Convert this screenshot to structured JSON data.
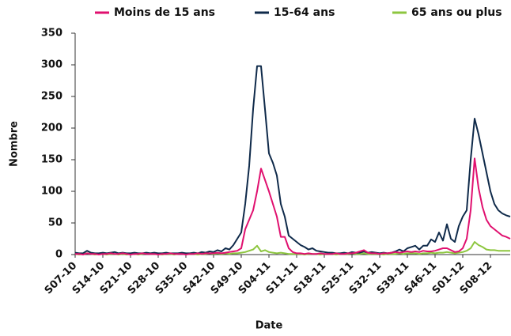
{
  "chart_data": {
    "type": "line",
    "x_label": "Date",
    "y_label": "Nombre",
    "legend": "top",
    "grid": false,
    "ylim": [
      0,
      350
    ],
    "yticks": [
      0,
      50,
      100,
      150,
      200,
      250,
      300,
      350
    ],
    "categories": [
      "S07-10",
      null,
      null,
      null,
      null,
      null,
      null,
      "S14-10",
      null,
      null,
      null,
      null,
      null,
      null,
      "S21-10",
      null,
      null,
      null,
      null,
      null,
      null,
      "S28-10",
      null,
      null,
      null,
      null,
      null,
      null,
      "S35-10",
      null,
      null,
      null,
      null,
      null,
      null,
      "S42-10",
      null,
      null,
      null,
      null,
      null,
      null,
      "S49-10",
      null,
      null,
      null,
      null,
      null,
      null,
      "S04-11",
      null,
      null,
      null,
      null,
      null,
      null,
      "S11-11",
      null,
      null,
      null,
      null,
      null,
      null,
      "S18-11",
      null,
      null,
      null,
      null,
      null,
      null,
      "S25-11",
      null,
      null,
      null,
      null,
      null,
      null,
      "S32-11",
      null,
      null,
      null,
      null,
      null,
      null,
      "S39-11",
      null,
      null,
      null,
      null,
      null,
      null,
      "S46-11",
      null,
      null,
      null,
      null,
      null,
      null,
      "S01-12",
      null,
      null,
      null,
      null,
      null,
      null,
      "S08-12",
      null,
      null,
      null,
      null,
      null
    ],
    "series": [
      {
        "name": "Moins de 15 ans",
        "color": "#e0106f",
        "values": [
          1,
          1,
          0,
          2,
          1,
          1,
          0,
          1,
          1,
          2,
          1,
          1,
          2,
          1,
          0,
          1,
          1,
          2,
          1,
          1,
          1,
          0,
          1,
          1,
          2,
          1,
          1,
          1,
          0,
          1,
          1,
          2,
          1,
          2,
          2,
          2,
          3,
          2,
          3,
          4,
          5,
          6,
          10,
          40,
          55,
          70,
          100,
          136,
          118,
          100,
          80,
          60,
          28,
          28,
          10,
          4,
          2,
          2,
          1,
          2,
          1,
          1,
          2,
          1,
          1,
          1,
          2,
          1,
          1,
          2,
          2,
          3,
          5,
          7,
          3,
          2,
          2,
          1,
          2,
          2,
          3,
          4,
          3,
          4,
          5,
          4,
          5,
          4,
          6,
          5,
          5,
          6,
          8,
          10,
          10,
          7,
          4,
          5,
          10,
          25,
          70,
          152,
          105,
          75,
          55,
          45,
          40,
          35,
          30,
          28,
          25
        ]
      },
      {
        "name": "15-64 ans",
        "color": "#0f2a4a",
        "values": [
          3,
          2,
          2,
          6,
          3,
          2,
          2,
          3,
          2,
          3,
          4,
          2,
          3,
          2,
          2,
          3,
          2,
          2,
          3,
          2,
          3,
          2,
          2,
          3,
          2,
          2,
          2,
          3,
          2,
          2,
          3,
          2,
          4,
          3,
          5,
          4,
          7,
          5,
          10,
          8,
          15,
          25,
          35,
          80,
          140,
          230,
          298,
          298,
          230,
          160,
          145,
          125,
          80,
          60,
          30,
          25,
          20,
          15,
          12,
          8,
          10,
          6,
          5,
          4,
          3,
          3,
          2,
          2,
          3,
          2,
          4,
          3,
          3,
          5,
          3,
          4,
          3,
          2,
          3,
          2,
          3,
          5,
          8,
          5,
          10,
          12,
          14,
          8,
          14,
          14,
          24,
          20,
          35,
          22,
          48,
          25,
          20,
          45,
          60,
          70,
          150,
          215,
          190,
          160,
          130,
          100,
          80,
          70,
          65,
          62,
          60
        ]
      },
      {
        "name": "65 ans ou plus",
        "color": "#8dc63f",
        "values": [
          1,
          0,
          1,
          2,
          1,
          0,
          1,
          1,
          0,
          1,
          1,
          0,
          1,
          0,
          1,
          1,
          0,
          1,
          2,
          1,
          1,
          1,
          0,
          1,
          1,
          0,
          1,
          2,
          1,
          1,
          1,
          0,
          1,
          1,
          2,
          1,
          2,
          1,
          2,
          1,
          2,
          2,
          3,
          4,
          6,
          8,
          14,
          5,
          7,
          4,
          3,
          2,
          3,
          2,
          1,
          1,
          1,
          1,
          0,
          1,
          1,
          1,
          0,
          1,
          1,
          1,
          0,
          1,
          1,
          1,
          2,
          1,
          1,
          2,
          1,
          1,
          1,
          1,
          0,
          1,
          1,
          1,
          2,
          1,
          2,
          2,
          2,
          1,
          2,
          2,
          3,
          2,
          3,
          3,
          4,
          3,
          2,
          3,
          4,
          6,
          10,
          20,
          15,
          12,
          8,
          7,
          7,
          6,
          6,
          6,
          6
        ]
      }
    ]
  }
}
